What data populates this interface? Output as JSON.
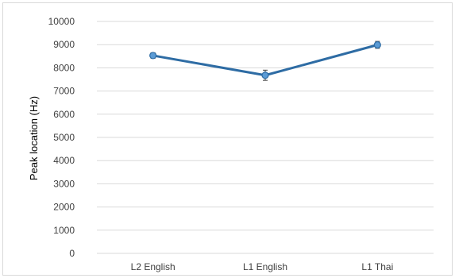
{
  "chart_data": {
    "type": "line",
    "categories": [
      "L2 English",
      "L1 English",
      "L1 Thai"
    ],
    "series": [
      {
        "values": [
          8530,
          7680,
          8990
        ],
        "error": [
          120,
          220,
          150
        ],
        "color": "#2e6ca4",
        "marker_color": "#5b9bd5"
      }
    ],
    "ylabel": "Peak location (Hz)",
    "xlabel": "",
    "title": "",
    "ylim": [
      0,
      10000
    ],
    "yticks": [
      "0",
      "1000",
      "2000",
      "3000",
      "4000",
      "5000",
      "6000",
      "7000",
      "8000",
      "9000",
      "10000"
    ],
    "yticks_values": [
      0,
      1000,
      2000,
      3000,
      4000,
      5000,
      6000,
      7000,
      8000,
      9000,
      10000
    ],
    "grid": true,
    "grid_color": "#d9d9d9",
    "legend": "none"
  }
}
